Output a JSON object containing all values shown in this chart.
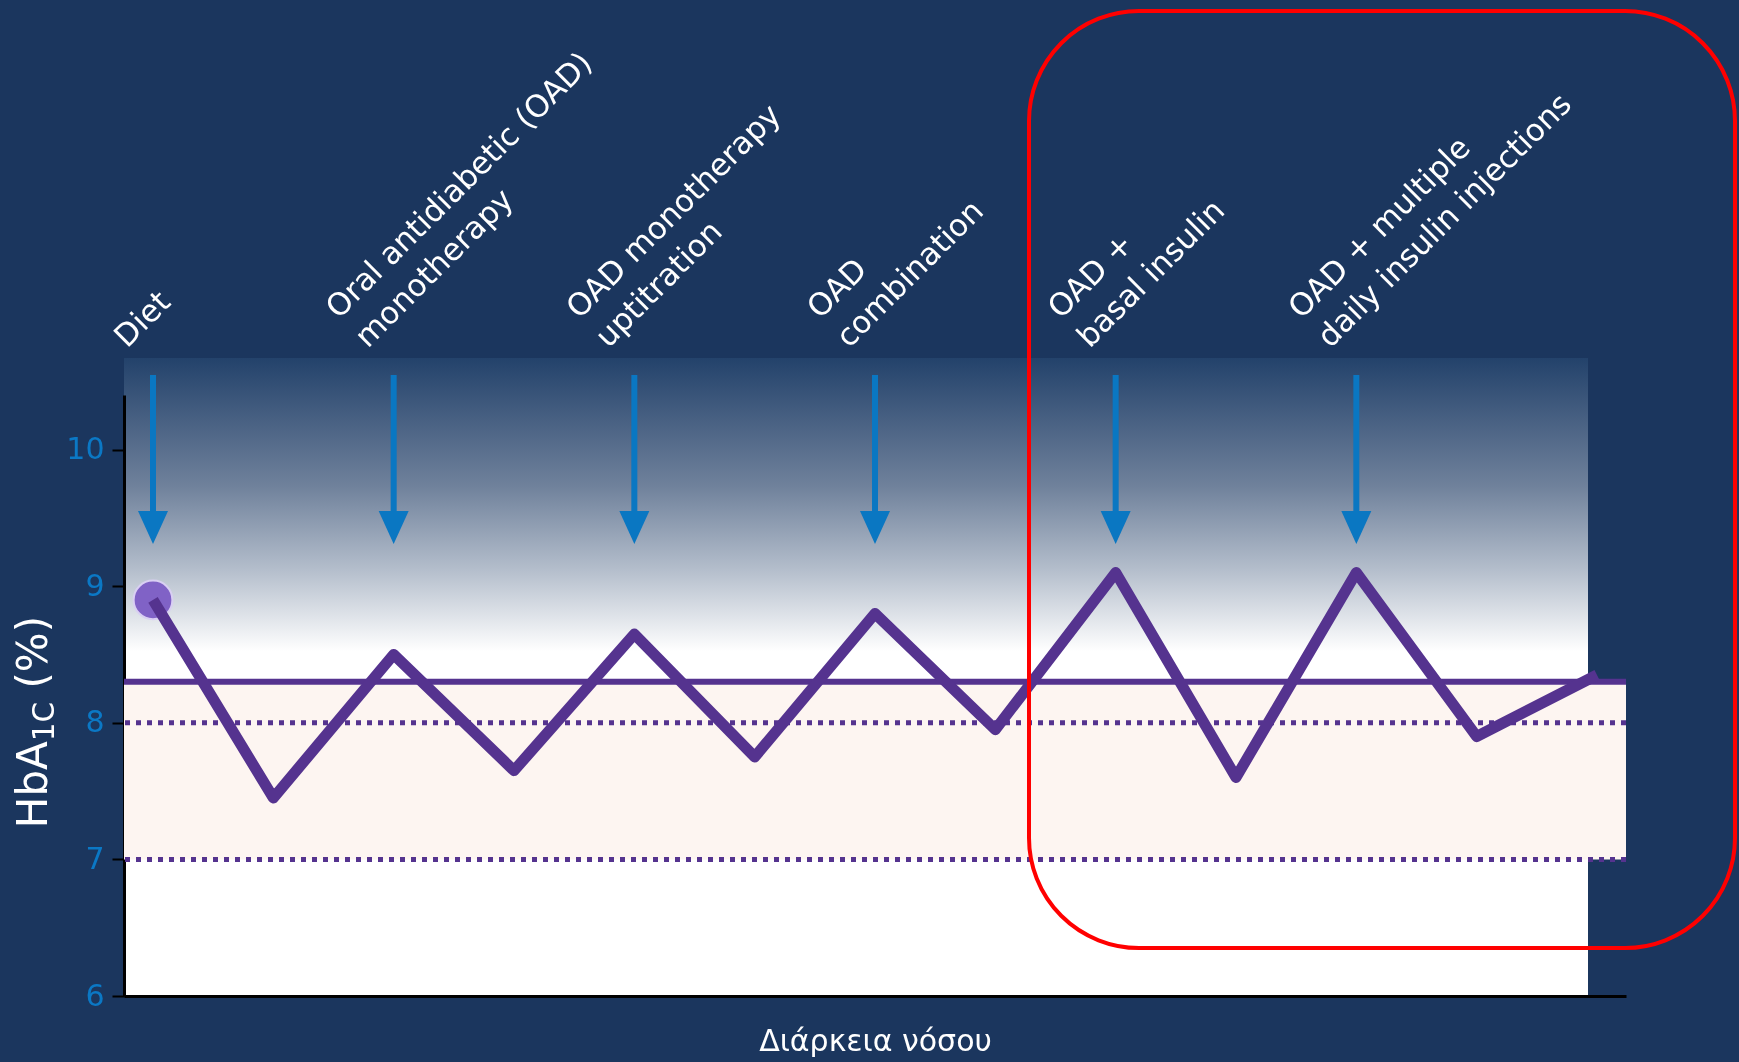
{
  "chart_data": {
    "type": "line",
    "xlabel": "Διάρκεια νόσου",
    "ylabel": "HbA$_{1C}$ (%)",
    "tick_labels": "y",
    "categories": [
      null,
      null,
      null,
      null,
      null,
      null,
      null,
      null,
      null,
      null,
      null,
      null,
      null
    ],
    "series": [
      {
        "color": "#55338f",
        "values": [
          8.9,
          7.45,
          8.5,
          7.65,
          8.65,
          7.75,
          8.8,
          7.95,
          9.1,
          7.6,
          9.1,
          7.9,
          8.35
        ]
      },
      {
        "type": "scatter",
        "color": "#8062c6",
        "marker": "circle",
        "values": [
          8.9,
          null,
          null,
          null,
          null,
          null,
          null,
          null,
          null,
          null,
          null,
          null,
          null
        ]
      }
    ],
    "ylim": [
      6,
      10.4
    ],
    "yticks": [
      6,
      7,
      8,
      9,
      10
    ],
    "ref_lines": [
      {
        "axis": "y",
        "value": 8.3,
        "color": "#55338f",
        "line_style": "solid"
      },
      {
        "axis": "y",
        "value": 8,
        "color": "#55338f",
        "line_style": "dotted"
      },
      {
        "axis": "y",
        "value": 7,
        "color": "#55338f",
        "line_style": "dotted"
      }
    ],
    "bands": [
      {
        "axis": "y",
        "from": 7,
        "to": 8.3,
        "color": "#fdf5f1"
      }
    ],
    "annotations": [
      "Diet",
      "Oral antidiabetic (OAD)\nmonotherapy",
      "OAD monotherapy\nuptitration",
      "OAD\ncombination",
      "OAD +\nbasal insulin",
      "OAD + multiple\ndaily insulin injections"
    ]
  }
}
